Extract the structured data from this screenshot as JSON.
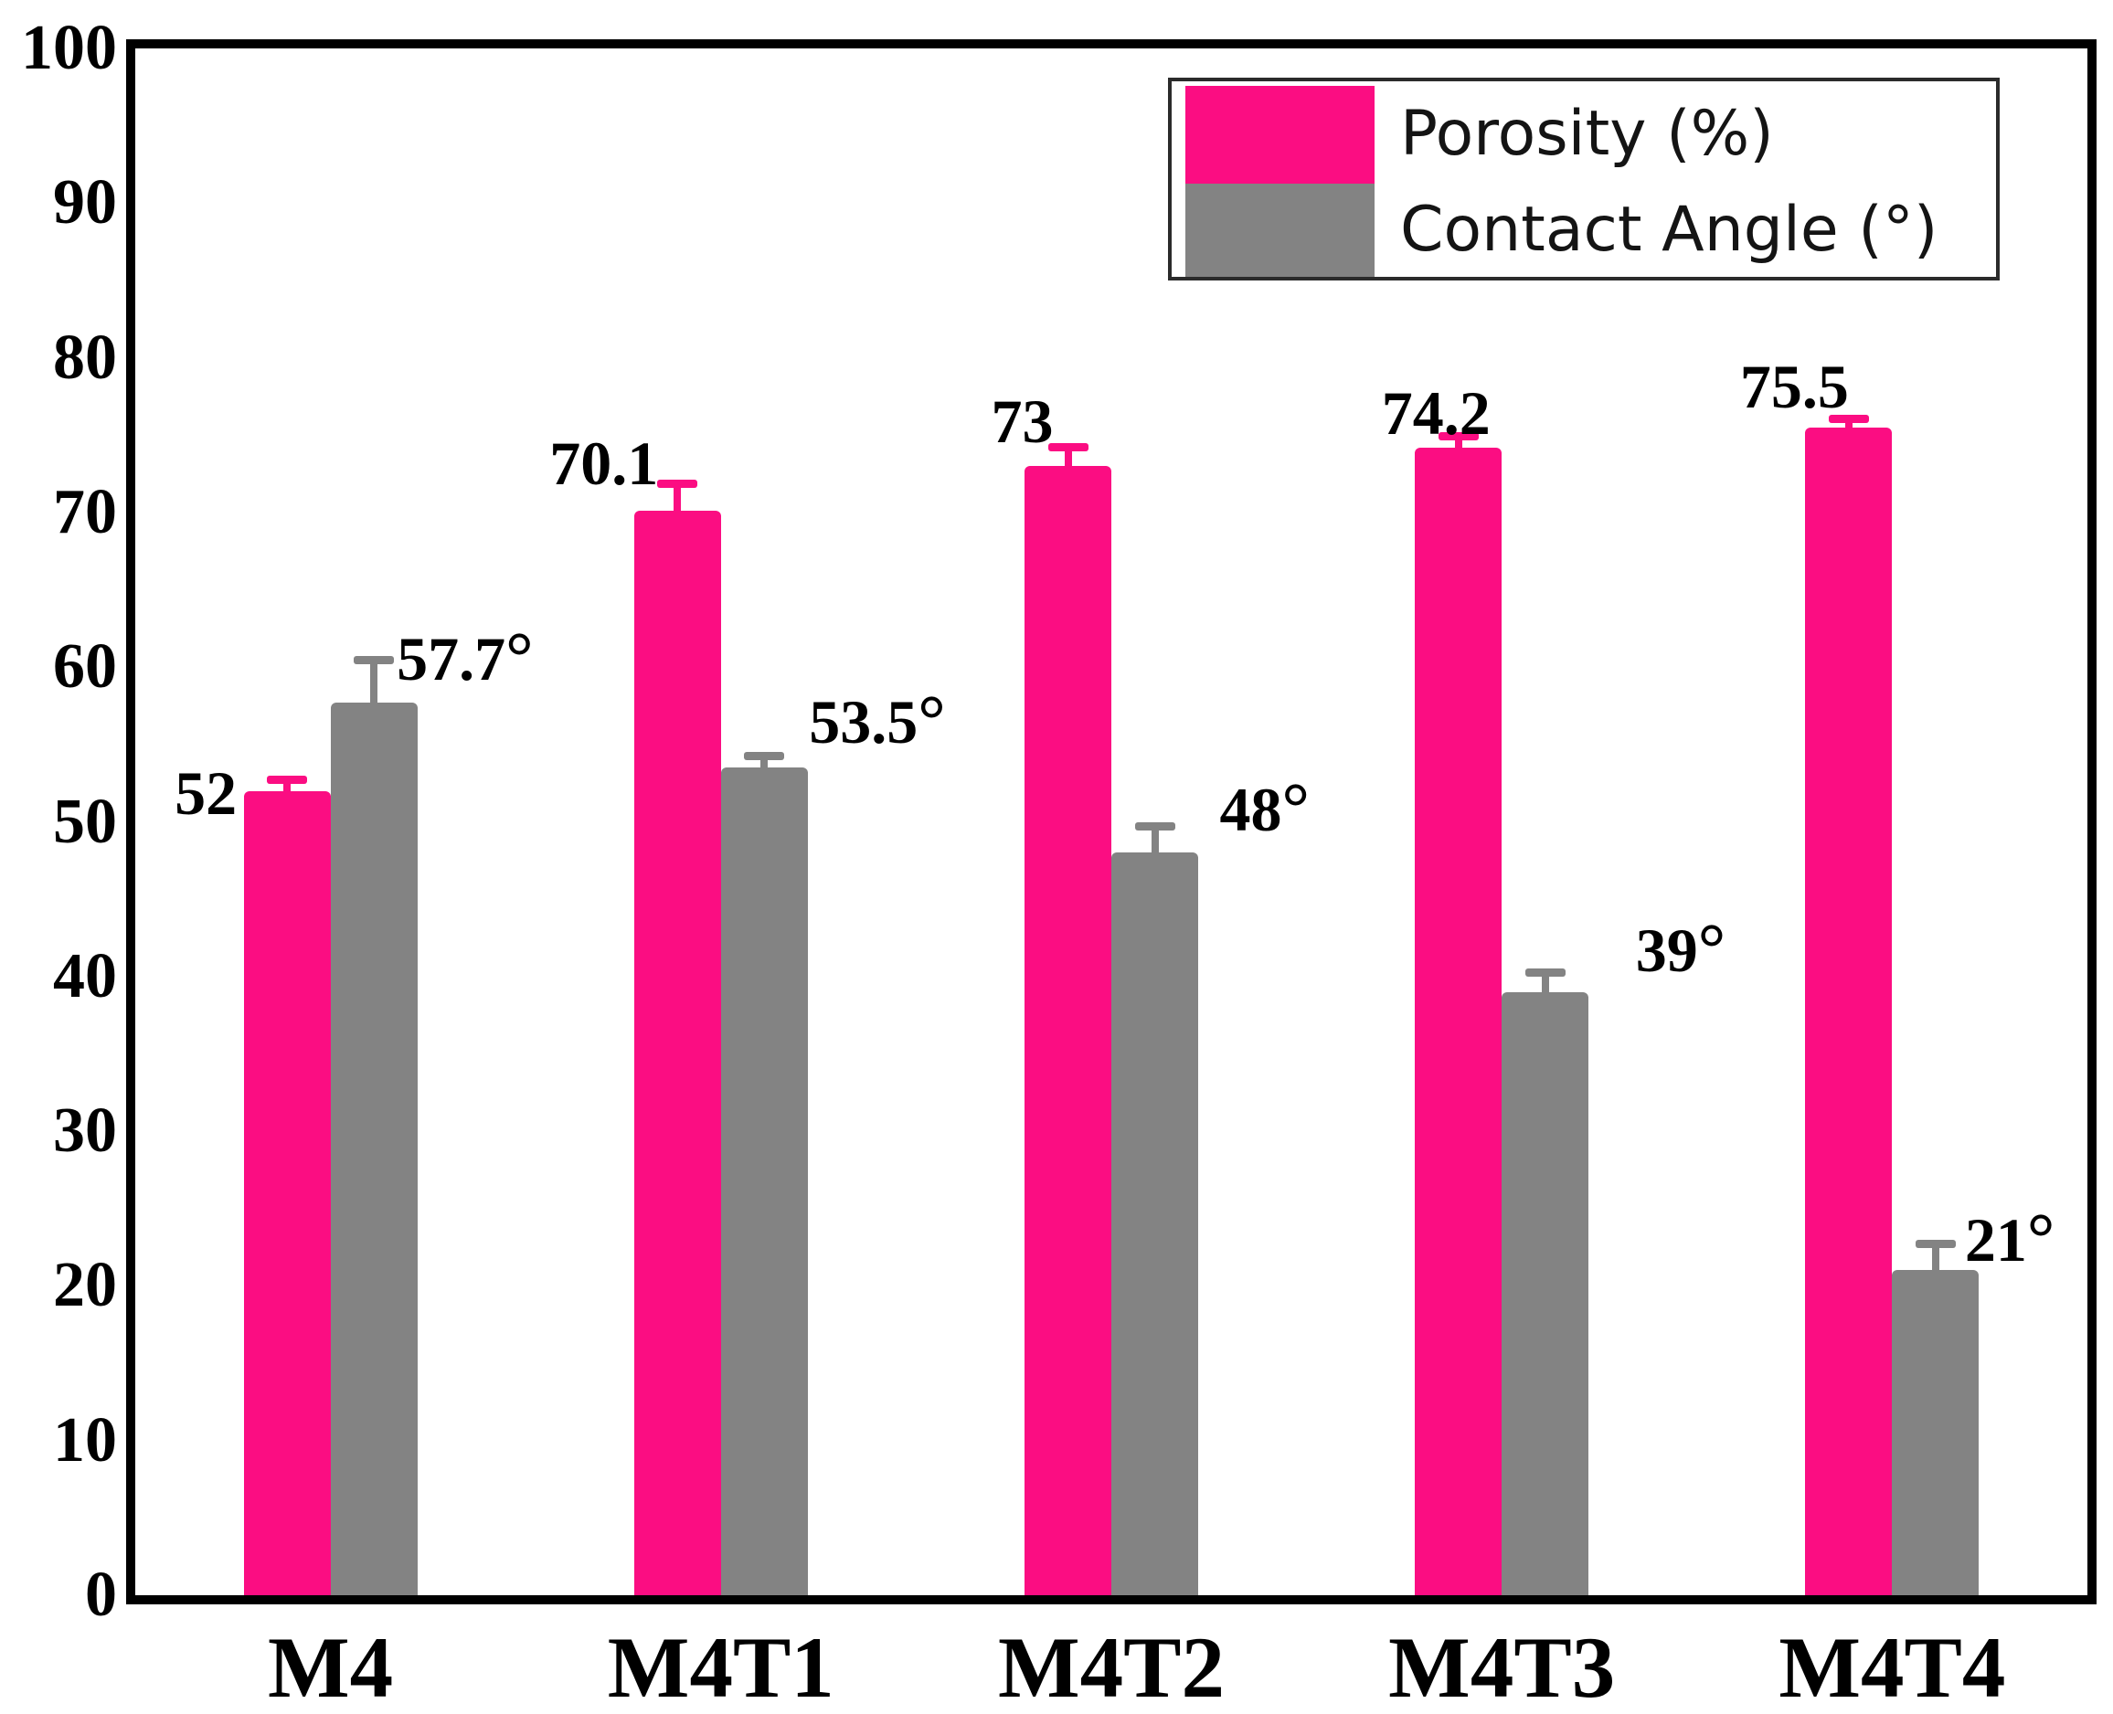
{
  "figure": {
    "background": "#ffffff"
  },
  "chart_data": {
    "type": "bar",
    "title": "",
    "xlabel": "",
    "ylabel": "",
    "categories": [
      "M4",
      "M4T1",
      "M4T2",
      "M4T3",
      "M4T4"
    ],
    "series": [
      {
        "name": "Porosity (%)",
        "color": "#fb0d82",
        "values": [
          52,
          70.1,
          73,
          74.2,
          75.5
        ],
        "errors": [
          1,
          2,
          1.5,
          1,
          0.8
        ],
        "point_labels": [
          "52",
          "70.1",
          "73",
          "74.2",
          "75.5"
        ]
      },
      {
        "name": "Contact Angle (°)",
        "color": "#838383",
        "values": [
          57.7,
          53.5,
          48,
          39,
          21
        ],
        "errors": [
          3,
          1,
          2,
          1.5,
          2
        ],
        "point_labels": [
          "57.7°",
          "53.5°",
          "48°",
          "39°",
          "21°"
        ]
      }
    ],
    "ylim": [
      0,
      100
    ],
    "yticks": [
      0,
      10,
      20,
      30,
      40,
      50,
      60,
      70,
      80,
      90,
      100
    ],
    "grid": false,
    "legend_position": "top-right",
    "axis_color": "#000000"
  }
}
